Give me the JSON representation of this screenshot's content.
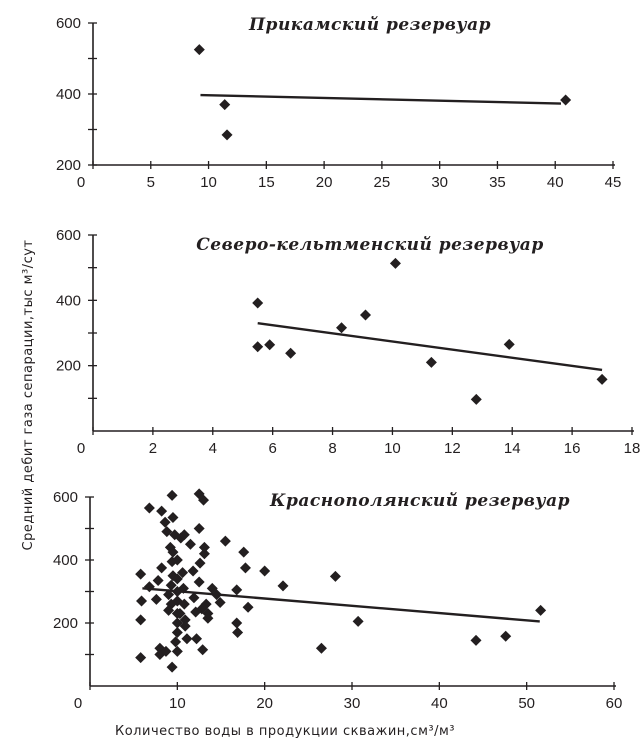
{
  "ylabel": "Средний  дебит  газа  сепарации,тыс м³/сут",
  "xlabel": "Количество воды в продукции скважин,см³/м³",
  "chart_data": [
    {
      "type": "scatter",
      "title": "Прикамский  резервуар",
      "xlim": [
        0,
        45
      ],
      "ylim": [
        200,
        600
      ],
      "xticks": [
        0,
        5,
        10,
        15,
        20,
        25,
        30,
        35,
        40,
        45
      ],
      "yticks_labeled": [
        200,
        400,
        600
      ],
      "yticks_minor": [
        300,
        500
      ],
      "points": [
        [
          9.2,
          525
        ],
        [
          11.4,
          370
        ],
        [
          11.6,
          285
        ],
        [
          40.9,
          383
        ]
      ],
      "trendline": [
        [
          9.3,
          397
        ],
        [
          40.5,
          373
        ]
      ]
    },
    {
      "type": "scatter",
      "title": "Северо-кельтменский  резервуар",
      "xlim": [
        0,
        18
      ],
      "ylim": [
        0,
        600
      ],
      "xticks": [
        0,
        2,
        4,
        6,
        8,
        10,
        12,
        14,
        16,
        18
      ],
      "yticks_labeled": [
        200,
        400,
        600
      ],
      "yticks_minor": [
        100,
        300,
        500
      ],
      "points": [
        [
          5.5,
          392
        ],
        [
          5.5,
          258
        ],
        [
          5.9,
          264
        ],
        [
          6.6,
          238
        ],
        [
          8.3,
          316
        ],
        [
          9.1,
          355
        ],
        [
          10.1,
          513
        ],
        [
          11.3,
          210
        ],
        [
          12.8,
          97
        ],
        [
          13.9,
          265
        ],
        [
          17.0,
          158
        ]
      ],
      "trendline": [
        [
          5.5,
          330
        ],
        [
          17.0,
          187
        ]
      ]
    },
    {
      "type": "scatter",
      "title": "Краснополянский  резервуар",
      "xlim": [
        0,
        60
      ],
      "ylim": [
        0,
        600
      ],
      "xticks": [
        0,
        10,
        20,
        30,
        40,
        50,
        60
      ],
      "yticks_labeled": [
        200,
        400,
        600
      ],
      "yticks_minor": [
        100,
        300,
        500
      ],
      "points": [
        [
          5.8,
          355
        ],
        [
          5.9,
          270
        ],
        [
          5.8,
          210
        ],
        [
          5.8,
          90
        ],
        [
          6.8,
          565
        ],
        [
          6.8,
          315
        ],
        [
          7.6,
          275
        ],
        [
          8.2,
          555
        ],
        [
          8.2,
          375
        ],
        [
          7.8,
          335
        ],
        [
          8.0,
          120
        ],
        [
          8.0,
          100
        ],
        [
          8.6,
          520
        ],
        [
          8.8,
          490
        ],
        [
          9.4,
          605
        ],
        [
          9.5,
          535
        ],
        [
          9.2,
          440
        ],
        [
          9.5,
          425
        ],
        [
          9.4,
          395
        ],
        [
          9.5,
          350
        ],
        [
          9.3,
          320
        ],
        [
          9.0,
          290
        ],
        [
          9.3,
          260
        ],
        [
          9.0,
          240
        ],
        [
          8.7,
          110
        ],
        [
          9.4,
          60
        ],
        [
          9.7,
          480
        ],
        [
          10.0,
          400
        ],
        [
          10.0,
          340
        ],
        [
          10.0,
          300
        ],
        [
          10.0,
          270
        ],
        [
          10.0,
          230
        ],
        [
          10.0,
          200
        ],
        [
          10.0,
          170
        ],
        [
          9.8,
          140
        ],
        [
          10.0,
          110
        ],
        [
          10.3,
          230
        ],
        [
          10.4,
          470
        ],
        [
          10.8,
          480
        ],
        [
          10.6,
          360
        ],
        [
          10.7,
          310
        ],
        [
          10.8,
          260
        ],
        [
          10.9,
          210
        ],
        [
          10.9,
          190
        ],
        [
          11.1,
          150
        ],
        [
          11.5,
          450
        ],
        [
          11.8,
          365
        ],
        [
          11.9,
          280
        ],
        [
          12.1,
          235
        ],
        [
          12.2,
          150
        ],
        [
          12.5,
          500
        ],
        [
          12.5,
          610
        ],
        [
          12.6,
          390
        ],
        [
          12.5,
          330
        ],
        [
          12.8,
          245
        ],
        [
          12.9,
          115
        ],
        [
          13.0,
          590
        ],
        [
          13.1,
          420
        ],
        [
          13.1,
          440
        ],
        [
          13.3,
          260
        ],
        [
          13.5,
          215
        ],
        [
          13.5,
          230
        ],
        [
          14.0,
          310
        ],
        [
          14.5,
          290
        ],
        [
          14.9,
          265
        ],
        [
          15.5,
          460
        ],
        [
          16.8,
          305
        ],
        [
          16.8,
          200
        ],
        [
          16.9,
          170
        ],
        [
          17.6,
          425
        ],
        [
          17.8,
          375
        ],
        [
          18.1,
          250
        ],
        [
          20.0,
          365
        ],
        [
          22.1,
          318
        ],
        [
          26.5,
          120
        ],
        [
          28.1,
          348
        ],
        [
          30.7,
          205
        ],
        [
          44.2,
          145
        ],
        [
          47.6,
          158
        ],
        [
          51.6,
          240
        ]
      ],
      "trendline": [
        [
          6.0,
          310
        ],
        [
          51.5,
          205
        ]
      ]
    }
  ]
}
